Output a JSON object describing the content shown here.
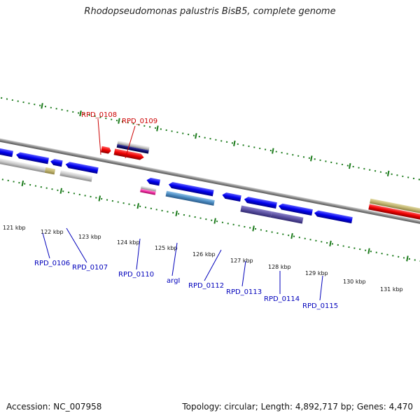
{
  "title": "Rhodopseudomonas palustris BisB5, complete genome",
  "footer": {
    "accession": "Accession: NC_007958",
    "summary": "Topology: circular; Length: 4,892,717 bp; Genes: 4,470"
  },
  "colors": {
    "forward_label": "#cc0000",
    "reverse_label": "#0000bb",
    "ruler_tick": "#1a7a1a",
    "backbone": "#888888"
  },
  "ruler": {
    "labels": [
      "121 kbp",
      "122 kbp",
      "123 kbp",
      "124 kbp",
      "125 kbp",
      "126 kbp",
      "127 kbp",
      "128 kbp",
      "129 kbp",
      "130 kbp",
      "131 kbp"
    ]
  },
  "gene_labels": {
    "RPD_0106": "RPD_0106",
    "RPD_0107": "RPD_0107",
    "RPD_0108": "RPD_0108",
    "RPD_0109": "RPD_0109",
    "RPD_0110": "RPD_0110",
    "argI": "argI",
    "RPD_0112": "RPD_0112",
    "RPD_0113": "RPD_0113",
    "RPD_0114": "RPD_0114",
    "RPD_0115": "RPD_0115"
  }
}
